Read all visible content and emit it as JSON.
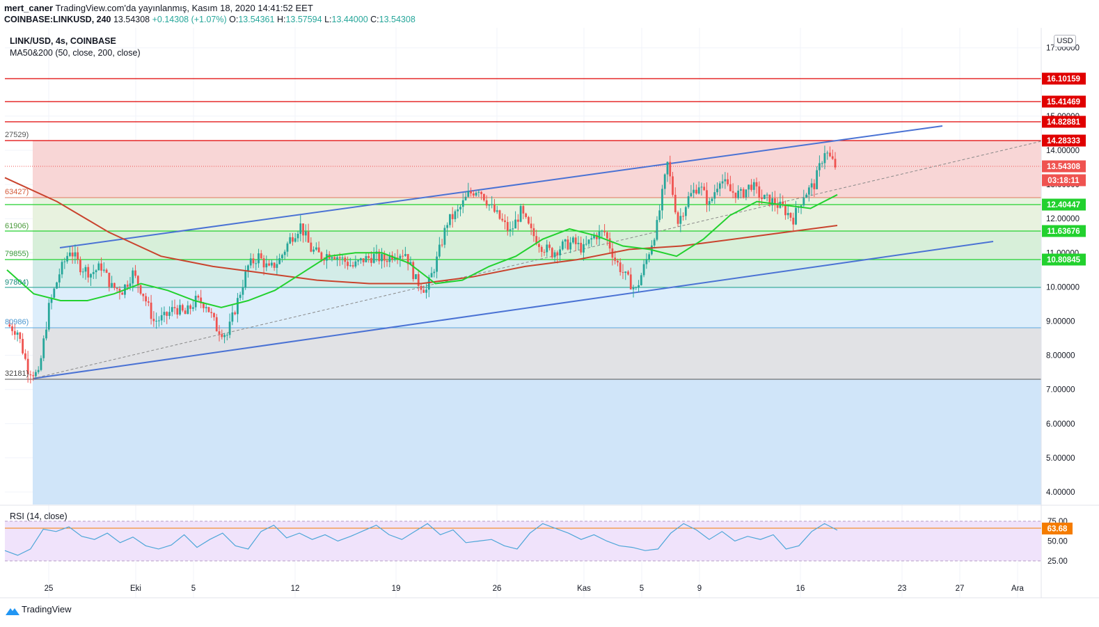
{
  "header": {
    "user": "mert_caner",
    "published": "TradingView.com'da yayınlanmış, Kasım 18, 2020 14:41:52 EET",
    "symbol": "COINBASE:LINKUSD, 240",
    "price": "13.54308",
    "change": "+0.14308 (+1.07%)",
    "o_label": "O:",
    "o": "13.54361",
    "h_label": "H:",
    "h": "13.57594",
    "l_label": "L:",
    "l": "13.44000",
    "c_label": "C:",
    "c": "13.54308"
  },
  "legend": {
    "title": "LINK/USD, 4s, COINBASE",
    "ma": "MA50&200 (50, close, 200, close)"
  },
  "rsi": {
    "label": "RSI (14, close)",
    "current": "63.68",
    "ticks": [
      "75.00",
      "50.00",
      "25.00"
    ]
  },
  "currency": "USD",
  "footer": {
    "brand": "TradingView"
  },
  "colors": {
    "up": "#26a69a",
    "down": "#ef5350",
    "ma50": "#22d12e",
    "ma200": "#c9432d",
    "channel": "#4a72d4",
    "level": "#e00000"
  },
  "chart_data": {
    "type": "candlestick",
    "title": "LINK/USD, 4s, COINBASE",
    "ylim": [
      3.7,
      17.4
    ],
    "y_ticks": [
      "17.00000",
      "15.00000",
      "14.00000",
      "13.00000",
      "12.00000",
      "11.00000",
      "10.00000",
      "9.00000",
      "8.00000",
      "7.00000",
      "6.00000",
      "5.00000",
      "4.00000"
    ],
    "x_ticks": [
      "25",
      "Eki",
      "5",
      "12",
      "19",
      "26",
      "Kas",
      "5",
      "9",
      "16",
      "23",
      "27",
      "Ara"
    ],
    "resistance_levels": [
      {
        "label": "16.10159",
        "value": 16.10159
      },
      {
        "label": "15.41469",
        "value": 15.41469
      },
      {
        "label": "14.82881",
        "value": 14.82881
      }
    ],
    "price_badges": [
      {
        "label": "14.28333",
        "color": "#e00000"
      },
      {
        "label": "13.54308",
        "color": "#ef5350"
      },
      {
        "label": "03:18:11",
        "color": "#ef5350"
      },
      {
        "label": "12.40447",
        "color": "#22d12e"
      },
      {
        "label": "11.63676",
        "color": "#22d12e"
      },
      {
        "label": "10.80845",
        "color": "#22d12e"
      }
    ],
    "fib_labels": [
      "27529)",
      "63427)",
      "61906)",
      "79855)",
      "97804)",
      "80986)",
      "32181)"
    ],
    "fib_levels": [
      14.275,
      12.634,
      11.619,
      10.799,
      9.978,
      8.81,
      7.32
    ],
    "candles_close_approx": [
      8.9,
      8.7,
      7.6,
      7.4,
      9.4,
      10.4,
      11.1,
      10.6,
      10.4,
      10.6,
      10.0,
      9.9,
      10.4,
      9.8,
      9.0,
      9.1,
      9.4,
      9.2,
      9.6,
      9.5,
      8.8,
      8.6,
      9.6,
      10.6,
      10.9,
      10.5,
      10.8,
      11.4,
      11.8,
      11.1,
      10.9,
      11.0,
      10.8,
      10.6,
      10.8,
      10.9,
      10.8,
      11.0,
      11.0,
      10.2,
      9.9,
      10.8,
      11.9,
      12.2,
      12.7,
      12.9,
      12.4,
      12.0,
      11.6,
      12.2,
      11.6,
      11.2,
      11.0,
      11.2,
      11.3,
      11.1,
      11.5,
      11.6,
      10.8,
      10.3,
      9.9,
      10.8,
      11.8,
      13.6,
      11.9,
      12.6,
      13.0,
      12.4,
      13.2,
      12.8,
      12.7,
      13.0,
      12.6,
      12.5,
      12.3,
      12.0,
      12.7,
      13.0,
      14.0,
      13.54
    ],
    "ma50_approx": [
      10.5,
      9.8,
      9.6,
      9.6,
      9.8,
      10.1,
      9.9,
      9.6,
      9.4,
      9.6,
      9.9,
      10.4,
      10.9,
      11.0,
      11.0,
      10.7,
      10.1,
      10.2,
      10.6,
      10.9,
      11.4,
      11.7,
      11.5,
      11.2,
      11.1,
      10.9,
      11.4,
      12.1,
      12.5,
      12.4,
      12.3,
      12.7
    ],
    "ma200_approx": [
      13.2,
      12.5,
      11.6,
      10.9,
      10.6,
      10.4,
      10.2,
      10.1,
      10.1,
      10.3,
      10.6,
      10.8,
      11.1,
      11.2,
      11.4,
      11.6,
      11.8
    ],
    "rsi_values_approx": [
      38,
      32,
      40,
      65,
      62,
      68,
      56,
      52,
      60,
      48,
      55,
      44,
      40,
      45,
      58,
      42,
      52,
      60,
      44,
      40,
      62,
      70,
      54,
      60,
      52,
      58,
      50,
      56,
      63,
      70,
      58,
      52,
      62,
      72,
      58,
      64,
      48,
      50,
      52,
      44,
      40,
      60,
      72,
      66,
      60,
      52,
      58,
      50,
      44,
      42,
      38,
      40,
      60,
      72,
      64,
      52,
      62,
      50,
      56,
      52,
      58,
      40,
      44,
      62,
      72,
      63.68
    ]
  }
}
